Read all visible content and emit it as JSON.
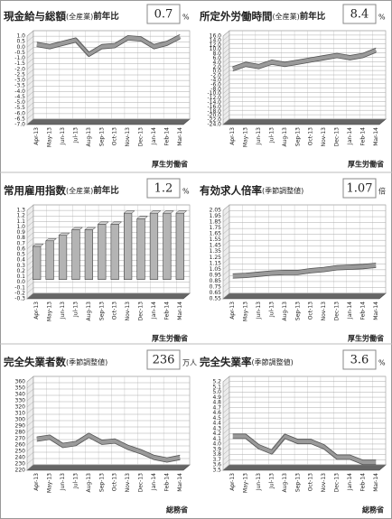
{
  "chart_data": [
    {
      "type": "line",
      "title": "現金給与総額",
      "title_note": "(全産業)",
      "title_suffix": "前年比",
      "latest": 0.7,
      "unit": "%",
      "source": "厚生労働省",
      "color": "#9a9a9a",
      "categories": [
        "Apr-13",
        "May-13",
        "Jun-13",
        "Jul-13",
        "Aug-13",
        "Sep-13",
        "Oct-13",
        "Nov-13",
        "Dec-13",
        "Jan-14",
        "Feb-14",
        "Mar-14"
      ],
      "values": [
        0.0,
        -0.2,
        0.1,
        0.4,
        -0.9,
        -0.2,
        -0.1,
        0.6,
        0.5,
        -0.2,
        0.1,
        0.7
      ],
      "ylim": [
        -7,
        1
      ],
      "yticks": [
        {
          "value": 1,
          "label": "1.0"
        },
        0.5,
        {
          "value": 0,
          "label": "0.0"
        },
        -0.5,
        {
          "value": -1,
          "label": "-1.0"
        },
        -1.5,
        {
          "value": -2,
          "label": "-2.0"
        },
        -2.5,
        {
          "value": -3,
          "label": "-3.0"
        },
        -3.5,
        {
          "value": -4,
          "label": "-4.0"
        },
        -4.5,
        {
          "value": -5,
          "label": "-5.0"
        },
        -5.5,
        {
          "value": -6,
          "label": "-6.0"
        },
        -6.5,
        {
          "value": -7,
          "label": "-7.0"
        }
      ]
    },
    {
      "type": "line",
      "title": "所定外労働時間",
      "title_note": "(全産業)",
      "title_suffix": "前年比",
      "latest": 8.4,
      "unit": "%",
      "source": "厚生労働省",
      "color": "#9a9a9a",
      "categories": [
        "Apr-13",
        "May-13",
        "Jun-13",
        "Jul-13",
        "Aug-13",
        "Sep-13",
        "Oct-13",
        "Nov-13",
        "Dec-13",
        "Jan-14",
        "Feb-14",
        "Mar-14"
      ],
      "values": [
        0.0,
        2.0,
        1.0,
        3.0,
        2.0,
        3.0,
        4.0,
        5.0,
        6.0,
        5.0,
        6.0,
        8.4
      ],
      "ylim": [
        -24,
        16
      ],
      "yticks": [
        {
          "value": 16,
          "label": "16.0"
        },
        {
          "value": 14,
          "label": "14.0"
        },
        {
          "value": 12,
          "label": "12.0"
        },
        {
          "value": 10,
          "label": "10.0"
        },
        {
          "value": 8,
          "label": "8.0"
        },
        {
          "value": 6,
          "label": "6.0"
        },
        {
          "value": 4,
          "label": "4.0"
        },
        {
          "value": 2,
          "label": "2.0"
        },
        {
          "value": 0,
          "label": "0.0"
        },
        {
          "value": -2,
          "label": "-2.0"
        },
        {
          "value": -4,
          "label": "-4.0"
        },
        {
          "value": -6,
          "label": "-6.0"
        },
        {
          "value": -8,
          "label": "-8.0"
        },
        {
          "value": -10,
          "label": "-10.0"
        },
        {
          "value": -12,
          "label": "-12.0"
        },
        {
          "value": -14,
          "label": "-14.0"
        },
        {
          "value": -16,
          "label": "-16.0"
        },
        {
          "value": -18,
          "label": "-18.0"
        },
        {
          "value": -20,
          "label": "-20.0"
        },
        {
          "value": -22,
          "label": "-22.0"
        },
        {
          "value": -24,
          "label": "-24.0"
        }
      ]
    },
    {
      "type": "bar",
      "title": "常用雇用指数",
      "title_note": "(全産業)",
      "title_suffix": "前年比",
      "latest": 1.2,
      "unit": "%",
      "source": "厚生労働省",
      "color": "#b4b4b4",
      "categories": [
        "Apr-13",
        "May-13",
        "Jun-13",
        "Jul-13",
        "Aug-13",
        "Sep-13",
        "Oct-13",
        "Nov-13",
        "Dec-13",
        "Jan-14",
        "Feb-14",
        "Mar-14"
      ],
      "values": [
        0.6,
        0.7,
        0.8,
        0.9,
        0.9,
        1.0,
        1.0,
        1.2,
        1.1,
        1.2,
        1.2,
        1.2
      ],
      "ylim": [
        -0.3,
        1.3
      ],
      "yticks": [
        1.3,
        1.2,
        1.1,
        {
          "value": 1,
          "label": "1.0"
        },
        0.9,
        0.8,
        0.7,
        0.6,
        0.5,
        0.4,
        0.3,
        0.2,
        0.1,
        {
          "value": 0,
          "label": "0.0"
        },
        -0.1,
        -0.2,
        -0.3
      ]
    },
    {
      "type": "line",
      "title": "有効求人倍率",
      "title_note": "(季節調整値)",
      "latest": 1.07,
      "unit": "倍",
      "source": "厚生労働省",
      "color": "#9a9a9a",
      "categories": [
        "Apr-13",
        "May-13",
        "Jun-13",
        "Jul-13",
        "Aug-13",
        "Sep-13",
        "Oct-13",
        "Nov-13",
        "Dec-13",
        "Jan-14",
        "Feb-14",
        "Mar-14"
      ],
      "values": [
        0.89,
        0.9,
        0.92,
        0.94,
        0.95,
        0.95,
        0.98,
        1.0,
        1.03,
        1.04,
        1.05,
        1.07
      ],
      "ylim": [
        0.55,
        2.05
      ],
      "yticks": [
        2.05,
        1.95,
        1.85,
        1.75,
        1.65,
        1.55,
        1.45,
        1.35,
        1.25,
        1.15,
        1.05,
        0.95,
        0.85,
        0.75,
        0.65,
        0.55
      ]
    },
    {
      "type": "line",
      "title": "完全失業者数",
      "title_note": "(季節調整値)",
      "latest": 236,
      "unit": "万人",
      "source": "総務省",
      "color": "#9a9a9a",
      "categories": [
        "Apr-13",
        "May-13",
        "Jun-13",
        "Jul-13",
        "Aug-13",
        "Sep-13",
        "Oct-13",
        "Nov-13",
        "Dec-13",
        "Jan-14",
        "Feb-14",
        "Mar-14"
      ],
      "values": [
        265,
        268,
        255,
        258,
        271,
        260,
        262,
        252,
        245,
        236,
        232,
        236
      ],
      "ylim": [
        220,
        360
      ],
      "yticks": [
        360,
        350,
        340,
        330,
        320,
        310,
        300,
        290,
        280,
        270,
        260,
        250,
        240,
        230,
        220
      ]
    },
    {
      "type": "line",
      "title": "完全失業率",
      "title_note": "(季節調整値)",
      "latest": 3.6,
      "unit": "%",
      "source": "総務省",
      "color": "#9a9a9a",
      "categories": [
        "Apr-13",
        "May-13",
        "Jun-13",
        "Jul-13",
        "Aug-13",
        "Sep-13",
        "Oct-13",
        "Nov-13",
        "Dec-13",
        "Jan-14",
        "Feb-14",
        "Mar-14"
      ],
      "values": [
        4.1,
        4.1,
        3.9,
        3.8,
        4.1,
        4.0,
        4.0,
        3.9,
        3.7,
        3.7,
        3.6,
        3.6
      ],
      "ylim": [
        3.5,
        5.2
      ],
      "yticks": [
        5.2,
        5.1,
        {
          "value": 5,
          "label": "5.0"
        },
        4.9,
        4.8,
        4.7,
        4.6,
        4.5,
        4.4,
        4.3,
        4.2,
        4.1,
        {
          "value": 4,
          "label": "4.0"
        },
        3.9,
        3.8,
        3.7,
        3.6,
        3.5
      ]
    }
  ]
}
